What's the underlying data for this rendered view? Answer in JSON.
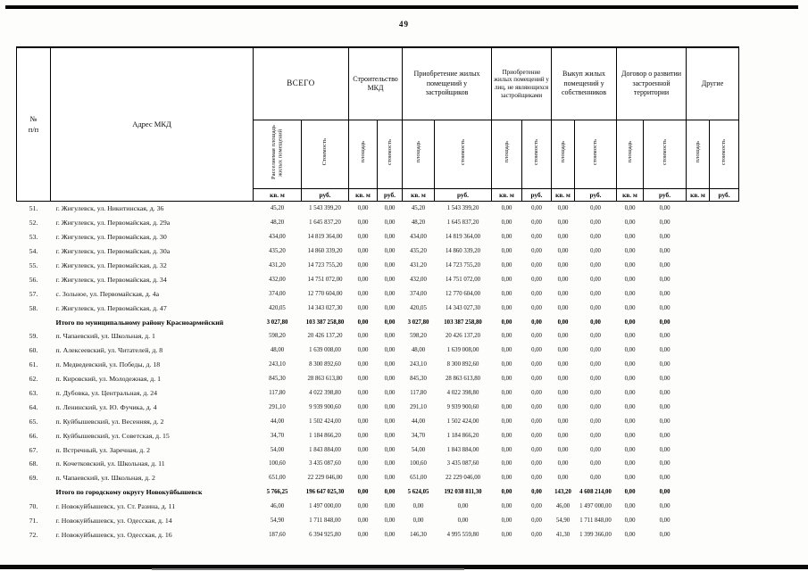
{
  "page": {
    "number": "49"
  },
  "table": {
    "header": {
      "num_label": "№\nп/п",
      "address_label": "Адрес МКД",
      "groups": [
        {
          "label": "ВСЕГО",
          "sub": [
            "Расселяемая площадь жилых помещений",
            "Стоимость"
          ],
          "units": [
            "кв. м",
            "руб."
          ]
        },
        {
          "label": "Строительство МКД",
          "sub": [
            "площадь",
            "стоимость"
          ],
          "units": [
            "кв. м",
            "руб."
          ]
        },
        {
          "label": "Приобретение жилых помещений у застройщиков",
          "sub": [
            "площадь",
            "стоимость"
          ],
          "units": [
            "кв. м",
            "руб."
          ]
        },
        {
          "label": "Приобретение жилых помещений у лиц, не являющихся застройщиками",
          "sub": [
            "площадь",
            "стоимость"
          ],
          "units": [
            "кв. м",
            "руб."
          ]
        },
        {
          "label": "Выкуп жилых помещений у собственников",
          "sub": [
            "площадь",
            "стоимость"
          ],
          "units": [
            "кв. м",
            "руб."
          ]
        },
        {
          "label": "Договор о развитии застроенной территории",
          "sub": [
            "площадь",
            "стоимость"
          ],
          "units": [
            "кв. м",
            "руб."
          ]
        },
        {
          "label": "Другие",
          "sub": [
            "площадь",
            "стоимость"
          ],
          "units": [
            "кв. м",
            "руб."
          ]
        }
      ]
    },
    "rows": [
      {
        "num": "51.",
        "address": "г. Жигулевск, ул. Никитинская, д. 36",
        "total": false,
        "values": [
          "45,20",
          "1 543 399,20",
          "0,00",
          "0,00",
          "45,20",
          "1 543 399,20",
          "0,00",
          "0,00",
          "0,00",
          "0,00",
          "0,00",
          "0,00",
          "",
          ""
        ]
      },
      {
        "num": "52.",
        "address": "г. Жигулевск,  ул. Первомайская, д. 29а",
        "total": false,
        "values": [
          "48,20",
          "1 645 837,20",
          "0,00",
          "0,00",
          "48,20",
          "1 645 837,20",
          "0,00",
          "0,00",
          "0,00",
          "0,00",
          "0,00",
          "0,00",
          "",
          ""
        ]
      },
      {
        "num": "53.",
        "address": "г. Жигулевск,  ул. Первомайская, д. 30",
        "total": false,
        "values": [
          "434,00",
          "14 819 364,00",
          "0,00",
          "0,00",
          "434,00",
          "14 819 364,00",
          "0,00",
          "0,00",
          "0,00",
          "0,00",
          "0,00",
          "0,00",
          "",
          ""
        ]
      },
      {
        "num": "54.",
        "address": "г. Жигулевск,  ул. Первомайская, д. 30а",
        "total": false,
        "values": [
          "435,20",
          "14 860 339,20",
          "0,00",
          "0,00",
          "435,20",
          "14 860 339,20",
          "0,00",
          "0,00",
          "0,00",
          "0,00",
          "0,00",
          "0,00",
          "",
          ""
        ]
      },
      {
        "num": "55.",
        "address": "г. Жигулевск,  ул. Первомайская, д. 32",
        "total": false,
        "values": [
          "431,20",
          "14 723 755,20",
          "0,00",
          "0,00",
          "431,20",
          "14 723 755,20",
          "0,00",
          "0,00",
          "0,00",
          "0,00",
          "0,00",
          "0,00",
          "",
          ""
        ]
      },
      {
        "num": "56.",
        "address": "г. Жигулевск, ул. Первомайская, д. 34",
        "total": false,
        "values": [
          "432,00",
          "14 751 072,00",
          "0,00",
          "0,00",
          "432,00",
          "14 751 072,00",
          "0,00",
          "0,00",
          "0,00",
          "0,00",
          "0,00",
          "0,00",
          "",
          ""
        ]
      },
      {
        "num": "57.",
        "address": "с. Зольное, ул. Первомайская, д. 4а",
        "total": false,
        "values": [
          "374,00",
          "12 770 604,00",
          "0,00",
          "0,00",
          "374,00",
          "12 770 604,00",
          "0,00",
          "0,00",
          "0,00",
          "0,00",
          "0,00",
          "0,00",
          "",
          ""
        ]
      },
      {
        "num": "58.",
        "address": "г. Жигулевск, ул. Первомайская, д. 47",
        "total": false,
        "values": [
          "420,05",
          "14 343 027,30",
          "0,00",
          "0,00",
          "420,05",
          "14 343 027,30",
          "0,00",
          "0,00",
          "0,00",
          "0,00",
          "0,00",
          "0,00",
          "",
          ""
        ]
      },
      {
        "num": "",
        "address": "Итого по муниципальному району Красноармейский",
        "total": true,
        "values": [
          "3 027,80",
          "103 387 258,80",
          "0,00",
          "0,00",
          "3 027,80",
          "103 387 258,80",
          "0,00",
          "0,00",
          "0,00",
          "0,00",
          "0,00",
          "0,00",
          "",
          ""
        ]
      },
      {
        "num": "59.",
        "address": "п. Чапаевский, ул. Школьная, д. 1",
        "total": false,
        "values": [
          "598,20",
          "20 426 137,20",
          "0,00",
          "0,00",
          "598,20",
          "20 426 137,20",
          "0,00",
          "0,00",
          "0,00",
          "0,00",
          "0,00",
          "0,00",
          "",
          ""
        ]
      },
      {
        "num": "60.",
        "address": "п. Алексеевский, ул. Читателей, д. 8",
        "total": false,
        "values": [
          "48,00",
          "1 639 008,00",
          "0,00",
          "0,00",
          "48,00",
          "1 639 008,00",
          "0,00",
          "0,00",
          "0,00",
          "0,00",
          "0,00",
          "0,00",
          "",
          ""
        ]
      },
      {
        "num": "61.",
        "address": "п. Медведевский, ул. Победы, д. 18",
        "total": false,
        "values": [
          "243,10",
          "8 300 892,60",
          "0,00",
          "0,00",
          "243,10",
          "8 300 892,60",
          "0,00",
          "0,00",
          "0,00",
          "0,00",
          "0,00",
          "0,00",
          "",
          ""
        ]
      },
      {
        "num": "62.",
        "address": "п. Кировский, ул. Молодежная, д. 1",
        "total": false,
        "values": [
          "845,30",
          "28 863 613,80",
          "0,00",
          "0,00",
          "845,30",
          "28 863 613,80",
          "0,00",
          "0,00",
          "0,00",
          "0,00",
          "0,00",
          "0,00",
          "",
          ""
        ]
      },
      {
        "num": "63.",
        "address": "п. Дубовка, ул. Центральная, д. 24",
        "total": false,
        "values": [
          "117,80",
          "4 022 398,80",
          "0,00",
          "0,00",
          "117,80",
          "4 022 398,80",
          "0,00",
          "0,00",
          "0,00",
          "0,00",
          "0,00",
          "0,00",
          "",
          ""
        ]
      },
      {
        "num": "64.",
        "address": "п. Ленинский, ул. Ю. Фучика, д. 4",
        "total": false,
        "values": [
          "291,10",
          "9 939 900,60",
          "0,00",
          "0,00",
          "291,10",
          "9 939 900,60",
          "0,00",
          "0,00",
          "0,00",
          "0,00",
          "0,00",
          "0,00",
          "",
          ""
        ]
      },
      {
        "num": "65.",
        "address": "п. Куйбышевский, ул. Весенняя, д. 2",
        "total": false,
        "values": [
          "44,00",
          "1 502 424,00",
          "0,00",
          "0,00",
          "44,00",
          "1 502 424,00",
          "0,00",
          "0,00",
          "0,00",
          "0,00",
          "0,00",
          "0,00",
          "",
          ""
        ]
      },
      {
        "num": "66.",
        "address": "п. Куйбышевский, ул. Советская, д. 15",
        "total": false,
        "values": [
          "34,70",
          "1 184 866,20",
          "0,00",
          "0,00",
          "34,70",
          "1 184 866,20",
          "0,00",
          "0,00",
          "0,00",
          "0,00",
          "0,00",
          "0,00",
          "",
          ""
        ]
      },
      {
        "num": "67.",
        "address": "п. Встречный, ул. Заречная, д. 2",
        "total": false,
        "values": [
          "54,00",
          "1 843 884,00",
          "0,00",
          "0,00",
          "54,00",
          "1 843 884,00",
          "0,00",
          "0,00",
          "0,00",
          "0,00",
          "0,00",
          "0,00",
          "",
          ""
        ]
      },
      {
        "num": "68.",
        "address": "п. Кочетковский, ул. Школьная, д. 11",
        "total": false,
        "values": [
          "100,60",
          "3 435 087,60",
          "0,00",
          "0,00",
          "100,60",
          "3 435 087,60",
          "0,00",
          "0,00",
          "0,00",
          "0,00",
          "0,00",
          "0,00",
          "",
          ""
        ]
      },
      {
        "num": "69.",
        "address": "п. Чапаевский, ул. Школьная, д. 2",
        "total": false,
        "values": [
          "651,00",
          "22 229 046,00",
          "0,00",
          "0,00",
          "651,00",
          "22 229 046,00",
          "0,00",
          "0,00",
          "0,00",
          "0,00",
          "0,00",
          "0,00",
          "",
          ""
        ]
      },
      {
        "num": "",
        "address": "Итого по городскому округу Новокуйбышевск",
        "total": true,
        "values": [
          "5 766,25",
          "196 647 025,30",
          "0,00",
          "0,00",
          "5 624,05",
          "192 038 811,30",
          "0,00",
          "0,00",
          "143,20",
          "4 608 214,00",
          "0,00",
          "0,00",
          "",
          ""
        ]
      },
      {
        "num": "70.",
        "address": "г. Новокуйбышевск, ул. Ст. Разина, д. 11",
        "total": false,
        "values": [
          "46,00",
          "1 497 000,00",
          "0,00",
          "0,00",
          "0,00",
          "0,00",
          "0,00",
          "0,00",
          "46,00",
          "1 497 000,00",
          "0,00",
          "0,00",
          "",
          ""
        ]
      },
      {
        "num": "71.",
        "address": "г. Новокуйбышевск, ул. Одесская, д. 14",
        "total": false,
        "values": [
          "54,90",
          "1 711 848,00",
          "0,00",
          "0,00",
          "0,00",
          "0,00",
          "0,00",
          "0,00",
          "54,90",
          "1 711 848,00",
          "0,00",
          "0,00",
          "",
          ""
        ]
      },
      {
        "num": "72.",
        "address": "г. Новокуйбышевск, ул. Одесская, д. 16",
        "total": false,
        "values": [
          "187,60",
          "6 394 925,80",
          "0,00",
          "0,00",
          "146,30",
          "4 995 559,80",
          "0,00",
          "0,00",
          "41,30",
          "1 399 366,00",
          "0,00",
          "0,00",
          "",
          ""
        ]
      }
    ]
  }
}
